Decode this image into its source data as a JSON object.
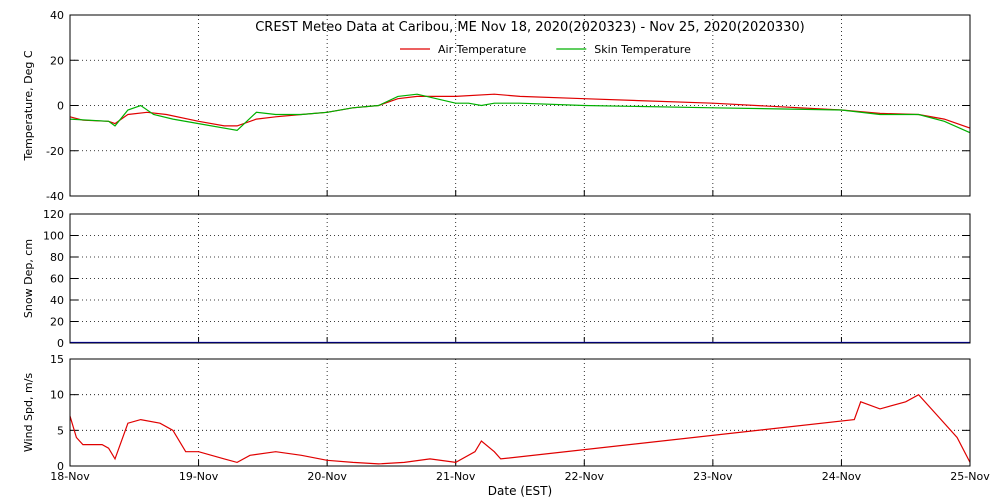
{
  "chart_data": [
    {
      "type": "line",
      "title": "CREST Meteo Data at Caribou, ME   Nov 18, 2020(2020323) - Nov 25, 2020(2020330)",
      "y_label": "Temperature, Deg C",
      "xlim": [
        18,
        25
      ],
      "ylim": [
        -40,
        40
      ],
      "yticks": [
        -40,
        -20,
        0,
        20,
        40
      ],
      "grid": true,
      "legend": "top",
      "series": [
        {
          "name": "Air Temperature",
          "color": "#e00000",
          "x": [
            18.0,
            18.1,
            18.3,
            18.35,
            18.45,
            18.6,
            18.75,
            19.0,
            19.2,
            19.3,
            19.45,
            19.6,
            19.8,
            20.0,
            20.2,
            20.4,
            20.55,
            20.7,
            21.0,
            21.3,
            21.5,
            22.0,
            23.0,
            24.0,
            24.3,
            24.6,
            24.8,
            25.0
          ],
          "values": [
            -5,
            -6.5,
            -7,
            -8,
            -4,
            -3,
            -4,
            -7,
            -9,
            -9,
            -6,
            -5,
            -4,
            -3,
            -1,
            0,
            3,
            4,
            4,
            5,
            4,
            3,
            1,
            -2,
            -3.5,
            -4,
            -6,
            -10
          ]
        },
        {
          "name": "Skin Temperature",
          "color": "#00b000",
          "x": [
            18.0,
            18.3,
            18.35,
            18.45,
            18.55,
            18.65,
            18.8,
            19.0,
            19.3,
            19.45,
            19.6,
            19.8,
            20.0,
            20.2,
            20.4,
            20.55,
            20.7,
            20.85,
            21.0,
            21.1,
            21.2,
            21.3,
            21.5,
            22.0,
            23.0,
            24.0,
            24.3,
            24.6,
            24.8,
            25.0
          ],
          "values": [
            -6,
            -7,
            -9,
            -2,
            0,
            -4,
            -6,
            -8,
            -11,
            -3,
            -4,
            -4,
            -3,
            -1,
            0,
            4,
            5,
            3,
            1,
            1,
            0,
            1,
            1,
            0,
            -1,
            -2,
            -4,
            -4,
            -7,
            -12
          ]
        }
      ]
    },
    {
      "type": "line",
      "y_label": "Snow Dep, cm",
      "xlim": [
        18,
        25
      ],
      "ylim": [
        0,
        120
      ],
      "yticks": [
        0,
        20,
        40,
        60,
        80,
        100,
        120
      ],
      "grid": true,
      "series": [
        {
          "color": "#0000e0",
          "x": [
            18.0,
            25.0
          ],
          "values": [
            0.5,
            0.5
          ]
        }
      ]
    },
    {
      "type": "line",
      "y_label": "Wind Spd, m/s",
      "x_label": "Date (EST)",
      "xlim": [
        18,
        25
      ],
      "ylim": [
        0,
        15
      ],
      "yticks": [
        0,
        5,
        10,
        15
      ],
      "grid": true,
      "xticks": [
        {
          "value": 18,
          "label": "18-Nov"
        },
        {
          "value": 19,
          "label": "19-Nov"
        },
        {
          "value": 20,
          "label": "20-Nov"
        },
        {
          "value": 21,
          "label": "21-Nov"
        },
        {
          "value": 22,
          "label": "22-Nov"
        },
        {
          "value": 23,
          "label": "23-Nov"
        },
        {
          "value": 24,
          "label": "24-Nov"
        },
        {
          "value": 25,
          "label": "25-Nov"
        }
      ],
      "series": [
        {
          "color": "#e00000",
          "x": [
            18.0,
            18.05,
            18.1,
            18.25,
            18.3,
            18.35,
            18.45,
            18.55,
            18.7,
            18.8,
            18.9,
            19.0,
            19.2,
            19.3,
            19.4,
            19.6,
            19.8,
            20.0,
            20.2,
            20.4,
            20.6,
            20.8,
            21.0,
            21.15,
            21.2,
            21.3,
            21.35,
            24.1,
            24.15,
            24.3,
            24.5,
            24.6,
            24.75,
            24.9,
            25.0
          ],
          "values": [
            7,
            4,
            3,
            3,
            2.5,
            1,
            6,
            6.5,
            6,
            5,
            2,
            2,
            1,
            0.5,
            1.5,
            2,
            1.5,
            0.8,
            0.5,
            0.3,
            0.5,
            1,
            0.5,
            2,
            3.5,
            2,
            1,
            6.5,
            9,
            8,
            9,
            10,
            7,
            4,
            0.5
          ]
        }
      ]
    }
  ]
}
